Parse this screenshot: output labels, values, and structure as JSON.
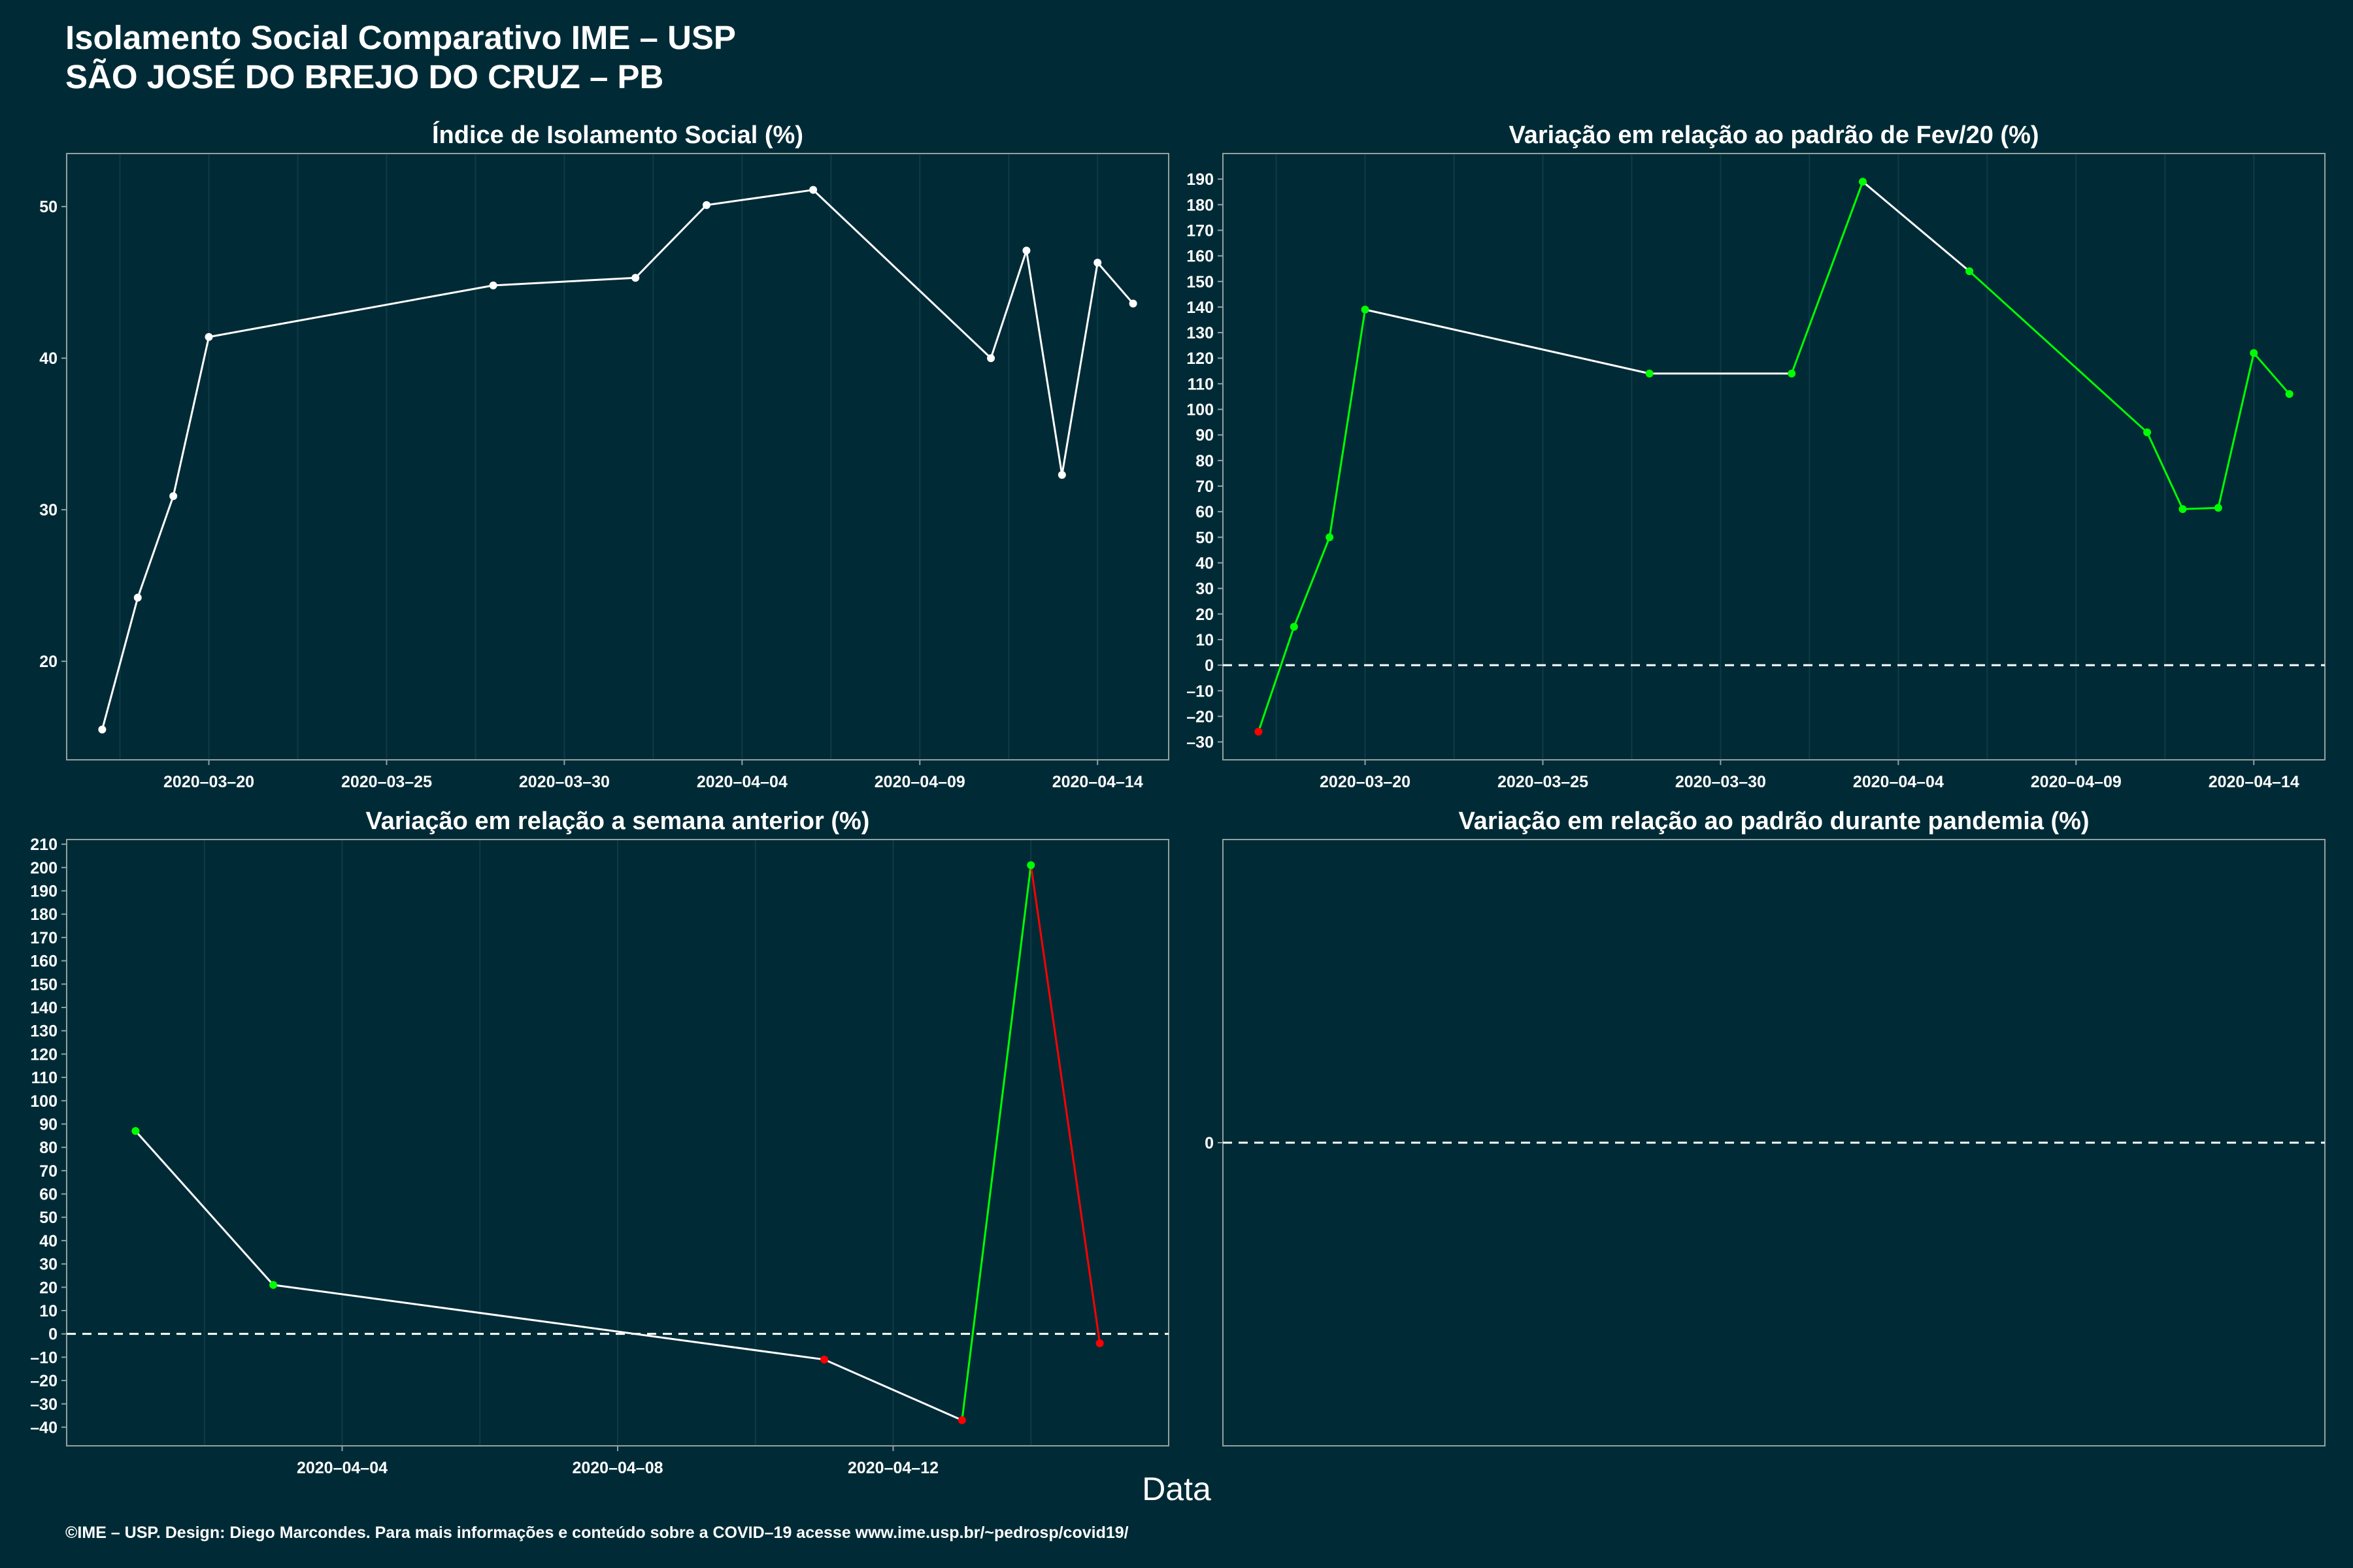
{
  "page": {
    "title_line1": "Isolamento Social Comparativo IME – USP",
    "title_line2": "SÃO JOSÉ DO BREJO DO CRUZ – PB",
    "x_axis_label": "Data",
    "footer": "©IME – USP. Design: Diego Marcondes. Para mais informações e conteúdo sobre a COVID–19 acesse www.ime.usp.br/~pedrosp/covid19/"
  },
  "colors": {
    "background": "#002b36",
    "axis_frame": "#93a1a1",
    "grid": "#0f3b47",
    "line_white": "#ffffff",
    "positive": "#00ff00",
    "negative": "#ff0000"
  },
  "chart_data": [
    {
      "id": "isolamento",
      "type": "line",
      "title": "Índice de Isolamento Social (%)",
      "x_type": "date",
      "xlim": [
        "2020-03-16",
        "2020-04-16"
      ],
      "x_ticks": [
        "2020-03-20",
        "2020-03-25",
        "2020-03-30",
        "2020-04-04",
        "2020-04-09",
        "2020-04-14"
      ],
      "ylim": [
        13.5,
        53.5
      ],
      "y_ticks": [
        20,
        30,
        40,
        50
      ],
      "zero_line": false,
      "point_color_mode": "white",
      "points": [
        {
          "x": "2020-03-17",
          "y": 15.5
        },
        {
          "x": "2020-03-18",
          "y": 24.2
        },
        {
          "x": "2020-03-19",
          "y": 30.9
        },
        {
          "x": "2020-03-20",
          "y": 41.4
        },
        {
          "x": "2020-03-28",
          "y": 44.8
        },
        {
          "x": "2020-04-01",
          "y": 45.3
        },
        {
          "x": "2020-04-03",
          "y": 50.1
        },
        {
          "x": "2020-04-06",
          "y": 51.1
        },
        {
          "x": "2020-04-11",
          "y": 40.0
        },
        {
          "x": "2020-04-12",
          "y": 47.1
        },
        {
          "x": "2020-04-13",
          "y": 32.3
        },
        {
          "x": "2020-04-14",
          "y": 46.3
        },
        {
          "x": "2020-04-15",
          "y": 43.6
        }
      ]
    },
    {
      "id": "variacao_fev",
      "type": "line",
      "title": "Variação em relação ao padrão de Fev/20 (%)",
      "x_type": "date",
      "xlim": [
        "2020-03-16",
        "2020-04-16"
      ],
      "x_ticks": [
        "2020-03-20",
        "2020-03-25",
        "2020-03-30",
        "2020-04-04",
        "2020-04-09",
        "2020-04-14"
      ],
      "ylim": [
        -37,
        200
      ],
      "y_ticks": [
        -30,
        -20,
        -10,
        0,
        10,
        20,
        30,
        40,
        50,
        60,
        70,
        80,
        90,
        100,
        110,
        120,
        130,
        140,
        150,
        160,
        170,
        180,
        190
      ],
      "zero_line": true,
      "point_color_mode": "sign",
      "points": [
        {
          "x": "2020-03-17",
          "y": -26
        },
        {
          "x": "2020-03-18",
          "y": 15
        },
        {
          "x": "2020-03-19",
          "y": 50
        },
        {
          "x": "2020-03-20",
          "y": 139
        },
        {
          "x": "2020-03-28",
          "y": 114
        },
        {
          "x": "2020-04-01",
          "y": 114
        },
        {
          "x": "2020-04-03",
          "y": 189
        },
        {
          "x": "2020-04-06",
          "y": 154
        },
        {
          "x": "2020-04-11",
          "y": 91
        },
        {
          "x": "2020-04-12",
          "y": 61
        },
        {
          "x": "2020-04-13",
          "y": 61.5
        },
        {
          "x": "2020-04-14",
          "y": 122
        },
        {
          "x": "2020-04-15",
          "y": 106
        }
      ]
    },
    {
      "id": "variacao_semana",
      "type": "line",
      "title": "Variação em relação a semana anterior (%)",
      "x_type": "date",
      "xlim": [
        "2020-03-31",
        "2020-04-16"
      ],
      "x_ticks": [
        "2020-04-04",
        "2020-04-08",
        "2020-04-12"
      ],
      "ylim": [
        -48,
        212
      ],
      "y_ticks": [
        -40,
        -30,
        -20,
        -10,
        0,
        10,
        20,
        30,
        40,
        50,
        60,
        70,
        80,
        90,
        100,
        110,
        120,
        130,
        140,
        150,
        160,
        170,
        180,
        190,
        200,
        210
      ],
      "zero_line": true,
      "point_color_mode": "sign",
      "points": [
        {
          "x": "2020-04-01",
          "y": 87
        },
        {
          "x": "2020-04-03",
          "y": 21
        },
        {
          "x": "2020-04-11",
          "y": -11
        },
        {
          "x": "2020-04-13",
          "y": -37
        },
        {
          "x": "2020-04-14",
          "y": 201
        },
        {
          "x": "2020-04-15",
          "y": -4
        }
      ]
    },
    {
      "id": "variacao_pandemia",
      "type": "line",
      "title": "Variação em relação ao padrão durante pandemia (%)",
      "x_type": "date",
      "xlim": null,
      "x_ticks": [],
      "ylim": [
        -1,
        1
      ],
      "y_ticks": [
        0
      ],
      "zero_line": true,
      "point_color_mode": "sign",
      "points": []
    }
  ]
}
